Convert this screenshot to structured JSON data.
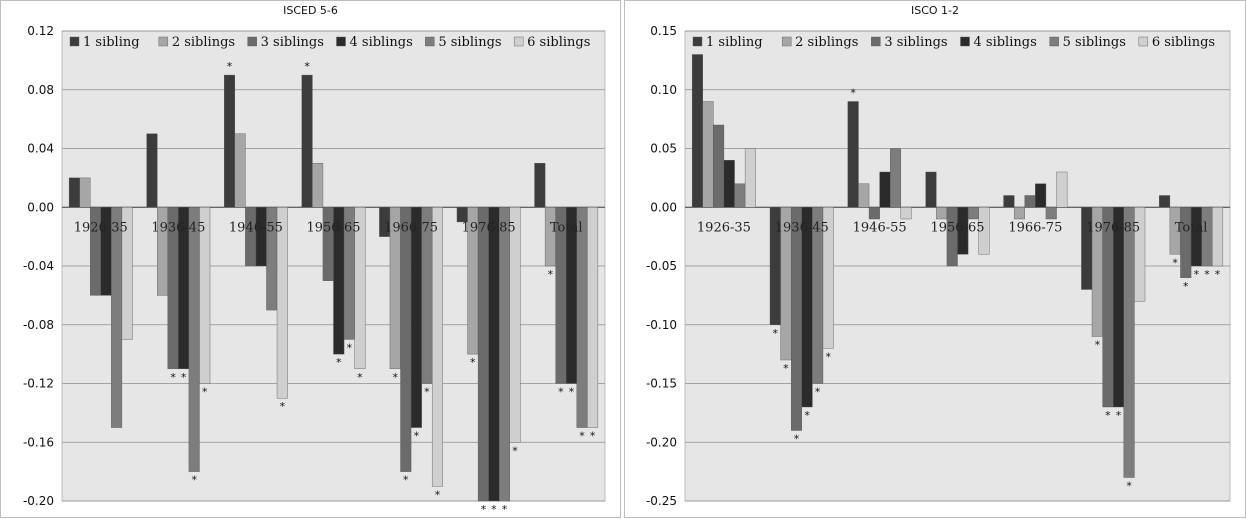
{
  "chart_data": [
    {
      "type": "bar",
      "title": "ISCED 5-6",
      "categories": [
        "1926-35",
        "1936-45",
        "1946-55",
        "1956-65",
        "1966-75",
        "1976-85",
        "Total"
      ],
      "ylim": [
        -0.2,
        0.12
      ],
      "yticks": [
        "0.12",
        "0.08",
        "0.04",
        "0.00",
        "-0.04",
        "-0.08",
        "-0.12",
        "-0.16",
        "-0.20"
      ],
      "ytick_values": [
        0.12,
        0.08,
        0.04,
        0.0,
        -0.04,
        -0.08,
        -0.12,
        -0.16,
        -0.2
      ],
      "grid": true,
      "legend_position": "top",
      "series": [
        {
          "name": "1 sibling",
          "color": "#3c3c3c",
          "values": [
            0.02,
            0.05,
            0.09,
            0.09,
            -0.02,
            -0.01,
            0.03
          ],
          "sig": [
            false,
            false,
            true,
            true,
            false,
            false,
            false
          ]
        },
        {
          "name": "2 siblings",
          "color": "#a6a6a6",
          "values": [
            0.02,
            -0.06,
            0.05,
            0.03,
            -0.11,
            -0.1,
            -0.04
          ],
          "sig": [
            false,
            false,
            false,
            false,
            true,
            true,
            true
          ]
        },
        {
          "name": "3 siblings",
          "color": "#6b6b6b",
          "values": [
            -0.06,
            -0.11,
            -0.04,
            -0.05,
            -0.18,
            -0.2,
            -0.12
          ],
          "sig": [
            false,
            true,
            false,
            false,
            true,
            true,
            true
          ]
        },
        {
          "name": "4 siblings",
          "color": "#2b2b2b",
          "values": [
            -0.06,
            -0.11,
            -0.04,
            -0.1,
            -0.15,
            -0.2,
            -0.12
          ],
          "sig": [
            false,
            true,
            false,
            true,
            true,
            true,
            true
          ]
        },
        {
          "name": "5 siblings",
          "color": "#7d7d7d",
          "values": [
            -0.15,
            -0.18,
            -0.07,
            -0.09,
            -0.12,
            -0.2,
            -0.15
          ],
          "sig": [
            false,
            true,
            false,
            true,
            true,
            true,
            true
          ]
        },
        {
          "name": "6 siblings",
          "color": "#cfcfcf",
          "values": [
            -0.09,
            -0.12,
            -0.13,
            -0.11,
            -0.19,
            -0.16,
            -0.15
          ],
          "sig": [
            false,
            true,
            true,
            true,
            true,
            true,
            true
          ]
        }
      ]
    },
    {
      "type": "bar",
      "title": "ISCO 1-2",
      "categories": [
        "1926-35",
        "1936-45",
        "1946-55",
        "1956-65",
        "1966-75",
        "1976-85",
        "Total"
      ],
      "ylim": [
        -0.25,
        0.15
      ],
      "yticks": [
        "0.15",
        "0.10",
        "0.05",
        "0.00",
        "-0.05",
        "-0.10",
        "-0.15",
        "-0.20",
        "-0.25"
      ],
      "ytick_values": [
        0.15,
        0.1,
        0.05,
        0.0,
        -0.05,
        -0.1,
        -0.15,
        -0.2,
        -0.25
      ],
      "grid": true,
      "legend_position": "top",
      "series": [
        {
          "name": "1 sibling",
          "color": "#3c3c3c",
          "values": [
            0.13,
            -0.1,
            0.09,
            0.03,
            0.01,
            -0.07,
            0.01
          ],
          "sig": [
            false,
            true,
            true,
            false,
            false,
            false,
            false
          ]
        },
        {
          "name": "2 siblings",
          "color": "#a6a6a6",
          "values": [
            0.09,
            -0.13,
            0.02,
            -0.01,
            -0.01,
            -0.11,
            -0.04
          ],
          "sig": [
            false,
            true,
            false,
            false,
            false,
            true,
            true
          ]
        },
        {
          "name": "3 siblings",
          "color": "#6b6b6b",
          "values": [
            0.07,
            -0.19,
            -0.01,
            -0.05,
            0.01,
            -0.17,
            -0.06
          ],
          "sig": [
            false,
            true,
            false,
            false,
            false,
            true,
            true
          ]
        },
        {
          "name": "4 siblings",
          "color": "#2b2b2b",
          "values": [
            0.04,
            -0.17,
            0.03,
            -0.04,
            0.02,
            -0.17,
            -0.05
          ],
          "sig": [
            false,
            true,
            false,
            false,
            false,
            true,
            true
          ]
        },
        {
          "name": "5 siblings",
          "color": "#7d7d7d",
          "values": [
            0.02,
            -0.15,
            0.05,
            -0.01,
            -0.01,
            -0.23,
            -0.05
          ],
          "sig": [
            false,
            true,
            false,
            false,
            false,
            true,
            true
          ]
        },
        {
          "name": "6 siblings",
          "color": "#cfcfcf",
          "values": [
            0.05,
            -0.12,
            -0.01,
            -0.04,
            0.03,
            -0.08,
            -0.05
          ],
          "sig": [
            false,
            true,
            false,
            false,
            false,
            false,
            true
          ]
        }
      ]
    }
  ]
}
